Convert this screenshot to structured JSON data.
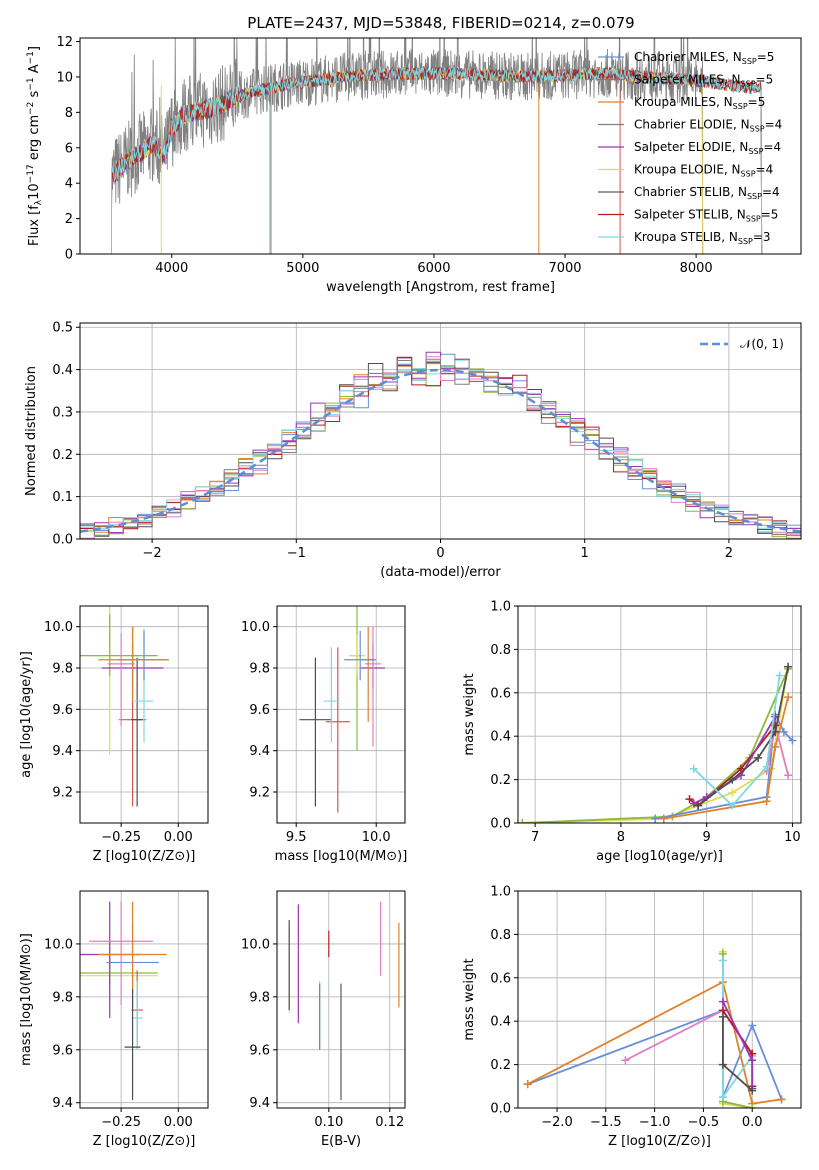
{
  "figure": {
    "title": "PLATE=2437, MJD=53848, FIBERID=0214, z=0.079"
  },
  "colors": {
    "Chabrier MILES": "#6b8fd6",
    "Salpeter MILES": "#d7574f",
    "Kroupa MILES": "#e0812c",
    "Chabrier ELODIE": "#4e4e4e",
    "Salpeter ELODIE": "#9b36b5",
    "Kroupa ELODIE": "#dddd55",
    "Chabrier STELIB": "#5b5b5b",
    "Salpeter STELIB": "#b51d1d",
    "Kroupa STELIB": "#7dd8e0",
    "green": "#8dba3a",
    "pink": "#e47cc4",
    "grey": "#808080",
    "normal": "#5b8ed8"
  },
  "legend_spectrum": [
    {
      "name": "Chabrier MILES",
      "n": "5"
    },
    {
      "name": "Salpeter MILES",
      "n": "5"
    },
    {
      "name": "Kroupa MILES",
      "n": "5"
    },
    {
      "name": "Chabrier ELODIE",
      "n": "4"
    },
    {
      "name": "Salpeter ELODIE",
      "n": "4"
    },
    {
      "name": "Kroupa ELODIE",
      "n": "4"
    },
    {
      "name": "Chabrier STELIB",
      "n": "4"
    },
    {
      "name": "Salpeter STELIB",
      "n": "5"
    },
    {
      "name": "Kroupa STELIB",
      "n": "3"
    }
  ],
  "chart_data": [
    {
      "id": "spectrum",
      "type": "line",
      "xlabel": "wavelength [Angstrom, rest frame]",
      "ylabel": "Flux [f_λ10^-17 erg cm^-2 s^-1 A^-1]",
      "xlim": [
        3300,
        8800
      ],
      "ylim": [
        0,
        12.2
      ],
      "xticks": [
        4000,
        5000,
        6000,
        7000,
        8000
      ],
      "yticks": [
        0,
        2,
        4,
        6,
        8,
        10,
        12
      ],
      "continuum_x": [
        3550,
        3650,
        3750,
        3850,
        3950,
        4000,
        4100,
        4200,
        4300,
        4500,
        4700,
        4900,
        5100,
        5300,
        5500,
        5800,
        6100,
        6400,
        6700,
        7000,
        7300,
        7600,
        8000,
        8400
      ],
      "continuum_y": [
        4.4,
        5.2,
        5.7,
        6.2,
        5.6,
        7.1,
        7.9,
        8.1,
        8.2,
        8.9,
        9.3,
        9.6,
        9.8,
        10.0,
        10.1,
        10.2,
        10.2,
        10.1,
        10.0,
        10.1,
        10.2,
        10.0,
        9.8,
        9.4
      ],
      "grid": false,
      "legend": "top-right"
    },
    {
      "id": "residuals",
      "type": "histogram",
      "xlabel": "(data-model)/error",
      "ylabel": "Normed distribution",
      "xlim": [
        -2.5,
        2.5
      ],
      "ylim": [
        0,
        0.51
      ],
      "xticks": [
        -2,
        -1,
        0,
        1,
        2
      ],
      "yticks": [
        0.0,
        0.1,
        0.2,
        0.3,
        0.4,
        0.5
      ],
      "bin_width": 0.1,
      "normal_label": "𝒩(0, 1)",
      "grid": true,
      "legend": "top-right"
    },
    {
      "id": "age_vs_Z",
      "type": "errorbar",
      "xlabel": "Z [log10(Z/Z⊙)]",
      "ylabel": "age [log10(age/yr)]",
      "xlim": [
        -0.43,
        0.13
      ],
      "ylim": [
        9.05,
        10.1
      ],
      "xticks": [
        -0.25,
        0.0
      ],
      "yticks": [
        9.2,
        9.4,
        9.6,
        9.8,
        10.0
      ],
      "points": [
        {
          "c": "Kroupa ELODIE",
          "x": -0.3,
          "y": 9.86,
          "xe": 0.42,
          "ye": [
            0.48,
            0.24
          ]
        },
        {
          "c": "green",
          "x": -0.3,
          "y": 9.86,
          "xe": 0.42,
          "ye": [
            0.1,
            0.2
          ]
        },
        {
          "c": "Salpeter MILES",
          "x": -0.2,
          "y": 9.55,
          "xe": 0.12,
          "ye": [
            0.42,
            0.45
          ]
        },
        {
          "c": "Chabrier ELODIE",
          "x": -0.18,
          "y": 9.55,
          "xe": 0.05,
          "ye": [
            0.42,
            0.3
          ]
        },
        {
          "c": "Kroupa STELIB",
          "x": -0.15,
          "y": 9.64,
          "xe": 0.08,
          "ye": [
            0.2,
            0.35
          ]
        },
        {
          "c": "Salpeter ELODIE",
          "x": -0.2,
          "y": 9.8,
          "xe": 0.27,
          "ye": [
            0.1,
            0.12
          ]
        },
        {
          "c": "pink",
          "x": -0.25,
          "y": 9.82,
          "xe": 0.12,
          "ye": [
            0.3,
            0.15
          ]
        },
        {
          "c": "Chabrier MILES",
          "x": -0.15,
          "y": 9.84,
          "xe": 0.22,
          "ye": [
            0.1,
            0.14
          ]
        },
        {
          "c": "Kroupa MILES",
          "x": -0.2,
          "y": 9.84,
          "xe": 0.3,
          "ye": [
            0.2,
            0.16
          ]
        }
      ],
      "grid": true
    },
    {
      "id": "age_vs_mass",
      "type": "errorbar",
      "xlabel": "mass [log10(M/M⊙)]",
      "ylabel": "",
      "xlim": [
        9.38,
        10.18
      ],
      "ylim": [
        9.05,
        10.1
      ],
      "xticks": [
        9.5,
        10.0
      ],
      "yticks": [
        9.2,
        9.4,
        9.6,
        9.8,
        10.0
      ],
      "points": [
        {
          "c": "Chabrier ELODIE",
          "x": 9.62,
          "y": 9.55,
          "xe": 0.2,
          "ye": [
            0.42,
            0.3
          ]
        },
        {
          "c": "Salpeter MILES",
          "x": 9.76,
          "y": 9.54,
          "xe": 0.15,
          "ye": [
            0.44,
            0.36
          ]
        },
        {
          "c": "Kroupa STELIB",
          "x": 9.72,
          "y": 9.64,
          "xe": 0.1,
          "ye": [
            0.2,
            0.26
          ]
        },
        {
          "c": "green",
          "x": 9.88,
          "y": 9.86,
          "xe": 0.08,
          "ye": [
            0.46,
            0.24
          ]
        },
        {
          "c": "Kroupa ELODIE",
          "x": 9.88,
          "y": 9.86,
          "xe": 0.1,
          "ye": [
            0.1,
            0.1
          ]
        },
        {
          "c": "Salpeter ELODIE",
          "x": 9.98,
          "y": 9.8,
          "xe": 0.15,
          "ye": [
            0.1,
            0.12
          ]
        },
        {
          "c": "pink",
          "x": 9.98,
          "y": 9.82,
          "xe": 0.1,
          "ye": [
            0.4,
            0.18
          ]
        },
        {
          "c": "Kroupa MILES",
          "x": 9.95,
          "y": 9.84,
          "xe": 0.08,
          "ye": [
            0.3,
            0.16
          ]
        },
        {
          "c": "Chabrier MILES",
          "x": 9.9,
          "y": 9.84,
          "xe": 0.2,
          "ye": [
            0.1,
            0.14
          ]
        }
      ],
      "grid": true
    },
    {
      "id": "mass_weight_vs_age",
      "type": "line",
      "xlabel": "age [log10(age/yr)]",
      "ylabel": "mass weight",
      "xlim": [
        6.8,
        10.1
      ],
      "ylim": [
        0,
        1
      ],
      "xticks": [
        7,
        8,
        9,
        10
      ],
      "yticks": [
        0.0,
        0.2,
        0.4,
        0.6,
        0.8,
        1.0
      ],
      "series": [
        {
          "c": "Kroupa ELODIE",
          "x": [
            6.85,
            8.5,
            9.3,
            9.75,
            9.95
          ],
          "y": [
            0.0,
            0.02,
            0.14,
            0.25,
            0.72
          ]
        },
        {
          "c": "green",
          "x": [
            6.85,
            8.6,
            9.0,
            9.5,
            9.95
          ],
          "y": [
            0.0,
            0.03,
            0.12,
            0.3,
            0.71
          ]
        },
        {
          "c": "Chabrier MILES",
          "x": [
            8.4,
            9.7,
            9.8,
            9.9,
            10.0
          ],
          "y": [
            0.02,
            0.12,
            0.5,
            0.42,
            0.38
          ]
        },
        {
          "c": "Kroupa MILES",
          "x": [
            8.5,
            9.7,
            9.8,
            9.95
          ],
          "y": [
            0.02,
            0.1,
            0.35,
            0.58
          ]
        },
        {
          "c": "pink",
          "x": [
            9.7,
            9.8,
            9.95
          ],
          "y": [
            0.24,
            0.45,
            0.22
          ]
        },
        {
          "c": "Salpeter STELIB",
          "x": [
            8.8,
            8.9,
            9.4,
            9.8
          ],
          "y": [
            0.11,
            0.08,
            0.25,
            0.45
          ]
        },
        {
          "c": "Salpeter ELODIE",
          "x": [
            8.85,
            9.0,
            9.4,
            9.8
          ],
          "y": [
            0.09,
            0.12,
            0.22,
            0.49
          ]
        },
        {
          "c": "Chabrier ELODIE",
          "x": [
            8.9,
            9.3,
            9.6,
            9.8,
            9.95
          ],
          "y": [
            0.08,
            0.2,
            0.3,
            0.42,
            0.72
          ]
        },
        {
          "c": "Kroupa STELIB",
          "x": [
            8.85,
            9.3,
            9.7,
            9.85
          ],
          "y": [
            0.25,
            0.08,
            0.26,
            0.68
          ]
        }
      ],
      "grid": true
    },
    {
      "id": "mass_vs_Z",
      "type": "errorbar",
      "xlabel": "Z [log10(Z/Z⊙)]",
      "ylabel": "mass [log10(M/M⊙)]",
      "xlim": [
        -0.43,
        0.13
      ],
      "ylim": [
        9.38,
        10.2
      ],
      "xticks": [
        -0.25,
        0.0
      ],
      "yticks": [
        9.4,
        9.6,
        9.8,
        10.0
      ],
      "points": [
        {
          "c": "Kroupa ELODIE",
          "x": -0.3,
          "y": 9.88,
          "xe": 0.42,
          "ye": [
            0.1,
            0.14
          ]
        },
        {
          "c": "green",
          "x": -0.3,
          "y": 9.89,
          "xe": 0.42,
          "ye": [
            0.05,
            0.06
          ]
        },
        {
          "c": "Salpeter ELODIE",
          "x": -0.3,
          "y": 9.96,
          "xe": 0.28,
          "ye": [
            0.24,
            0.2
          ]
        },
        {
          "c": "pink",
          "x": -0.25,
          "y": 10.01,
          "xe": 0.28,
          "ye": [
            0.24,
            0.15
          ]
        },
        {
          "c": "Chabrier MILES",
          "x": -0.2,
          "y": 9.93,
          "xe": 0.23,
          "ye": [
            0.1,
            0.15
          ]
        },
        {
          "c": "Kroupa MILES",
          "x": -0.2,
          "y": 9.96,
          "xe": 0.3,
          "ye": [
            0.2,
            0.2
          ]
        },
        {
          "c": "Salpeter MILES",
          "x": -0.18,
          "y": 9.75,
          "xe": 0.05,
          "ye": [
            0.14,
            0.15
          ]
        },
        {
          "c": "Kroupa STELIB",
          "x": -0.18,
          "y": 9.72,
          "xe": 0.05,
          "ye": [
            0.12,
            0.14
          ]
        },
        {
          "c": "Chabrier ELODIE",
          "x": -0.2,
          "y": 9.61,
          "xe": 0.07,
          "ye": [
            0.2,
            0.22
          ]
        }
      ],
      "grid": true
    },
    {
      "id": "mass_vs_ebv",
      "type": "errorbar",
      "xlabel": "E(B-V)",
      "ylabel": "",
      "xlim": [
        0.083,
        0.125
      ],
      "ylim": [
        9.38,
        10.2
      ],
      "xticks": [
        0.1,
        0.12
      ],
      "yticks": [
        9.4,
        9.6,
        9.8,
        10.0
      ],
      "points": [
        {
          "c": "Kroupa ELODIE",
          "x": 0.087,
          "y": 9.88,
          "xe": 0.0,
          "ye": [
            0.14,
            0.18
          ]
        },
        {
          "c": "Chabrier ELODIE",
          "x": 0.087,
          "y": 9.95,
          "xe": 0.0,
          "ye": [
            0.2,
            0.14
          ]
        },
        {
          "c": "Salpeter ELODIE",
          "x": 0.09,
          "y": 9.9,
          "xe": 0.0,
          "ye": [
            0.2,
            0.25
          ]
        },
        {
          "c": "Kroupa STELIB",
          "x": 0.097,
          "y": 9.72,
          "xe": 0.0,
          "ye": [
            0.12,
            0.14
          ]
        },
        {
          "c": "grey",
          "x": 0.097,
          "y": 9.75,
          "xe": 0.0,
          "ye": [
            0.15,
            0.1
          ]
        },
        {
          "c": "Salpeter STELIB",
          "x": 0.1,
          "y": 10.0,
          "xe": 0.0,
          "ye": [
            0.05,
            0.05
          ]
        },
        {
          "c": "Chabrier STELIB",
          "x": 0.104,
          "y": 9.63,
          "xe": 0.0,
          "ye": [
            0.22,
            0.22
          ]
        },
        {
          "c": "pink",
          "x": 0.117,
          "y": 10.02,
          "xe": 0.0,
          "ye": [
            0.14,
            0.14
          ]
        },
        {
          "c": "Kroupa MILES",
          "x": 0.123,
          "y": 9.92,
          "xe": 0.0,
          "ye": [
            0.16,
            0.16
          ]
        }
      ],
      "grid": true
    },
    {
      "id": "mass_weight_vs_Z",
      "type": "line",
      "xlabel": "Z [log10(Z/Z⊙)]",
      "ylabel": "mass weight",
      "xlim": [
        -2.4,
        0.5
      ],
      "ylim": [
        0,
        1
      ],
      "xticks": [
        -2.0,
        -1.5,
        -1.0,
        -0.5,
        0.0
      ],
      "yticks": [
        0.0,
        0.2,
        0.4,
        0.6,
        0.8,
        1.0
      ],
      "series": [
        {
          "c": "Chabrier MILES",
          "x": [
            -2.3,
            -0.3,
            -0.3,
            0.0,
            0.3
          ],
          "y": [
            0.11,
            0.45,
            0.05,
            0.38,
            0.04
          ]
        },
        {
          "c": "Kroupa MILES",
          "x": [
            -2.3,
            -0.3,
            0.0,
            0.3
          ],
          "y": [
            0.11,
            0.58,
            0.02,
            0.04
          ]
        },
        {
          "c": "pink",
          "x": [
            -1.3,
            -0.3,
            0.0
          ],
          "y": [
            0.22,
            0.45,
            0.24
          ]
        },
        {
          "c": "Kroupa ELODIE",
          "x": [
            -0.3,
            -0.3,
            0.0
          ],
          "y": [
            0.72,
            0.02,
            0.0
          ]
        },
        {
          "c": "green",
          "x": [
            -0.3,
            -0.3,
            0.0
          ],
          "y": [
            0.71,
            0.03,
            0.0
          ]
        },
        {
          "c": "Kroupa STELIB",
          "x": [
            -0.3,
            -0.3,
            0.0
          ],
          "y": [
            0.68,
            0.05,
            0.24
          ]
        },
        {
          "c": "Salpeter STELIB",
          "x": [
            -0.3,
            0.0,
            0.0
          ],
          "y": [
            0.45,
            0.25,
            0.1
          ]
        },
        {
          "c": "Salpeter ELODIE",
          "x": [
            -0.3,
            0.0,
            0.0
          ],
          "y": [
            0.49,
            0.22,
            0.09
          ]
        },
        {
          "c": "Chabrier ELODIE",
          "x": [
            -0.3,
            -0.3,
            0.0
          ],
          "y": [
            0.42,
            0.2,
            0.08
          ]
        }
      ],
      "grid": true
    }
  ]
}
